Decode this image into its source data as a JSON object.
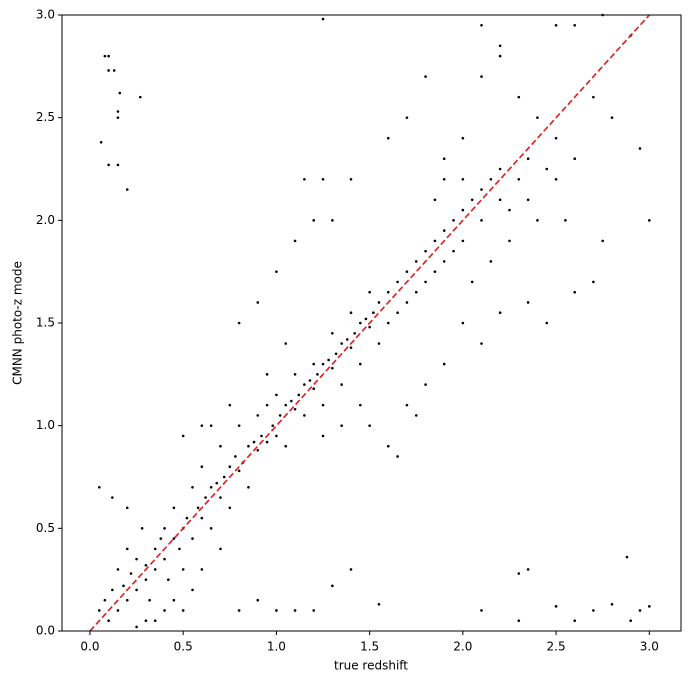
{
  "chart_data": {
    "type": "scatter",
    "xlabel": "true redshift",
    "ylabel": "CMNN photo-z mode",
    "xlim": [
      -0.15,
      3.17
    ],
    "ylim": [
      0,
      3
    ],
    "xticks": [
      {
        "value": 0,
        "label": "0.0"
      },
      {
        "value": 0.5,
        "label": "0.5"
      },
      {
        "value": 1,
        "label": "1.0"
      },
      {
        "value": 1.5,
        "label": "1.5"
      },
      {
        "value": 2,
        "label": "2.0"
      },
      {
        "value": 2.5,
        "label": "2.5"
      },
      {
        "value": 3,
        "label": "3.0"
      }
    ],
    "yticks": [
      {
        "value": 0,
        "label": "0.0"
      },
      {
        "value": 0.5,
        "label": "0.5"
      },
      {
        "value": 1,
        "label": "1.0"
      },
      {
        "value": 1.5,
        "label": "1.5"
      },
      {
        "value": 2,
        "label": "2.0"
      },
      {
        "value": 2.5,
        "label": "2.5"
      },
      {
        "value": 3,
        "label": "3.0"
      }
    ],
    "series": [
      {
        "color": "#000000",
        "x": [
          0.05,
          0.08,
          0.1,
          0.12,
          0.15,
          0.15,
          0.18,
          0.2,
          0.2,
          0.22,
          0.25,
          0.25,
          0.28,
          0.3,
          0.3,
          0.32,
          0.35,
          0.35,
          0.38,
          0.4,
          0.4,
          0.42,
          0.45,
          0.45,
          0.48,
          0.5,
          0.5,
          0.52,
          0.55,
          0.55,
          0.58,
          0.6,
          0.6,
          0.62,
          0.65,
          0.65,
          0.68,
          0.7,
          0.7,
          0.72,
          0.75,
          0.75,
          0.78,
          0.8,
          0.8,
          0.82,
          0.85,
          0.85,
          0.88,
          0.9,
          0.9,
          0.92,
          0.95,
          0.95,
          0.98,
          1.0,
          1.0,
          1.02,
          1.05,
          1.05,
          1.08,
          1.1,
          1.1,
          1.12,
          1.15,
          1.15,
          1.18,
          1.2,
          1.2,
          1.22,
          1.25,
          1.25,
          1.28,
          1.3,
          1.3,
          1.32,
          1.35,
          1.35,
          1.38,
          1.4,
          1.4,
          1.42,
          1.45,
          1.45,
          1.48,
          1.5,
          1.5,
          1.52,
          1.55,
          1.55,
          1.6,
          1.6,
          1.65,
          1.65,
          1.7,
          1.7,
          1.75,
          1.75,
          1.8,
          1.8,
          1.85,
          1.85,
          1.9,
          1.9,
          1.95,
          1.95,
          2.0,
          2.0,
          2.05,
          2.1,
          2.1,
          2.15,
          2.2,
          2.2,
          2.25,
          2.3,
          2.35,
          2.4,
          0.05,
          0.12,
          0.2,
          0.3,
          0.4,
          0.5,
          0.6,
          0.7,
          0.5,
          0.65,
          0.8,
          0.9,
          1.0,
          1.1,
          1.2,
          1.3,
          1.4,
          1.15,
          1.25,
          1.6,
          1.7,
          1.8,
          1.9,
          2.0,
          2.1,
          2.2,
          2.3,
          2.4,
          2.5,
          2.6,
          2.7,
          2.8,
          2.9,
          2.95,
          3.0,
          2.5,
          2.6,
          2.75,
          2.1,
          2.2,
          1.25,
          0.06,
          0.08,
          0.1,
          0.1,
          0.13,
          0.15,
          0.15,
          0.16,
          0.15,
          0.1,
          0.2,
          0.27,
          1.5,
          1.6,
          1.7,
          1.65,
          1.75,
          1.8,
          1.9,
          2.0,
          2.1,
          2.2,
          2.35,
          2.45,
          2.6,
          2.7,
          2.75,
          2.55,
          1.0,
          1.1,
          1.2,
          1.4,
          1.3,
          1.55,
          0.8,
          0.9,
          2.1,
          2.3,
          2.35,
          2.3,
          2.5,
          2.6,
          2.7,
          2.8,
          2.9,
          2.88,
          3.0,
          2.95,
          0.95,
          1.05,
          0.75,
          0.6,
          1.35,
          1.25,
          1.45,
          0.55,
          0.35,
          0.25,
          0.45,
          1.9,
          2.0,
          1.85,
          2.05,
          2.15,
          2.25,
          2.35,
          2.45,
          2.5
        ],
        "values": [
          0.1,
          0.15,
          0.05,
          0.2,
          0.1,
          0.3,
          0.22,
          0.15,
          0.4,
          0.28,
          0.2,
          0.35,
          0.5,
          0.25,
          0.32,
          0.15,
          0.4,
          0.3,
          0.45,
          0.35,
          0.5,
          0.25,
          0.45,
          0.6,
          0.4,
          0.5,
          0.3,
          0.55,
          0.45,
          0.7,
          0.6,
          0.55,
          0.8,
          0.65,
          0.5,
          0.7,
          0.72,
          0.65,
          0.9,
          0.75,
          0.8,
          0.6,
          0.85,
          0.78,
          1.0,
          0.82,
          0.9,
          0.7,
          0.92,
          0.88,
          1.05,
          0.95,
          0.92,
          1.1,
          1.0,
          0.95,
          1.15,
          1.05,
          1.1,
          0.9,
          1.12,
          1.08,
          1.25,
          1.15,
          1.2,
          1.05,
          1.22,
          1.18,
          1.3,
          1.25,
          1.3,
          1.1,
          1.32,
          1.28,
          1.45,
          1.35,
          1.4,
          1.2,
          1.42,
          1.38,
          1.55,
          1.45,
          1.5,
          1.3,
          1.52,
          1.48,
          1.65,
          1.55,
          1.6,
          1.4,
          1.65,
          1.5,
          1.7,
          1.55,
          1.75,
          1.6,
          1.8,
          1.65,
          1.85,
          1.7,
          1.9,
          1.75,
          1.95,
          1.8,
          2.0,
          1.85,
          2.05,
          1.9,
          2.1,
          2.15,
          2.0,
          2.2,
          2.25,
          2.1,
          2.05,
          2.2,
          2.1,
          2.0,
          0.7,
          0.65,
          0.6,
          0.05,
          0.1,
          0.1,
          0.3,
          0.4,
          0.95,
          1.0,
          1.5,
          1.6,
          1.75,
          1.9,
          2.0,
          2.0,
          2.2,
          2.2,
          2.2,
          2.4,
          2.5,
          2.7,
          2.3,
          2.4,
          2.7,
          2.8,
          2.6,
          2.5,
          2.4,
          2.3,
          2.6,
          2.5,
          2.9,
          2.35,
          2.0,
          2.95,
          2.95,
          3.0,
          2.95,
          2.85,
          2.98,
          2.38,
          2.8,
          2.8,
          2.73,
          2.73,
          2.5,
          2.53,
          2.62,
          2.27,
          2.27,
          2.15,
          2.6,
          1.0,
          0.9,
          1.1,
          0.85,
          1.05,
          1.2,
          1.3,
          1.5,
          1.4,
          1.55,
          1.6,
          1.5,
          1.65,
          1.7,
          1.9,
          2.0,
          0.1,
          0.1,
          0.1,
          0.3,
          0.22,
          0.13,
          0.1,
          0.15,
          0.1,
          0.05,
          0.3,
          0.28,
          0.12,
          0.05,
          0.1,
          0.13,
          0.05,
          0.36,
          0.12,
          0.1,
          1.25,
          1.4,
          1.1,
          1.0,
          1.0,
          0.95,
          1.1,
          0.2,
          0.05,
          0.02,
          0.15,
          2.2,
          2.2,
          2.1,
          1.7,
          1.8,
          1.9,
          2.3,
          2.25,
          2.2
        ]
      }
    ],
    "reference_line": {
      "x": [
        0,
        3
      ],
      "values": [
        0,
        3
      ],
      "color": "#e41a1c",
      "linestyle": "dashed"
    }
  }
}
